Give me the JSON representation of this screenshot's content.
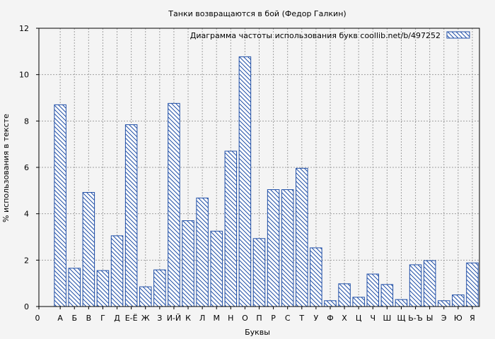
{
  "chart_data": {
    "type": "bar",
    "title": "Танки возвращаются в бой (Федор Галкин)",
    "xlabel": "Буквы",
    "ylabel": "% использования в тексте",
    "ylim": [
      0,
      12
    ],
    "yticks": [
      "0",
      "2",
      "4",
      "6",
      "8",
      "10",
      "12"
    ],
    "grid": true,
    "legend_position": "top-right",
    "categories": [
      "0",
      "А",
      "Б",
      "В",
      "Г",
      "Д",
      "Е-Ё",
      "Ж",
      "З",
      "И-Й",
      "К",
      "Л",
      "М",
      "Н",
      "О",
      "П",
      "Р",
      "С",
      "Т",
      "У",
      "Ф",
      "Х",
      "Ц",
      "Ч",
      "Ш",
      "Щ",
      "Ь-Ъ",
      "Ы",
      "Э",
      "Ю",
      "Я"
    ],
    "series": [
      {
        "name": "Диаграмма частоты использования букв  coollib.net/b/497252",
        "values": [
          null,
          8.7,
          1.65,
          4.92,
          1.55,
          3.05,
          7.84,
          0.85,
          1.58,
          8.76,
          3.7,
          4.68,
          3.25,
          6.7,
          10.77,
          2.93,
          5.04,
          5.04,
          5.96,
          2.53,
          0.25,
          0.98,
          0.4,
          1.4,
          0.95,
          0.3,
          1.8,
          1.98,
          0.25,
          0.5,
          1.88
        ]
      }
    ],
    "colors": {
      "bar_stroke": "#1f4ea6",
      "hatch": "#1f4ea6",
      "bar_fill": "#ffffff",
      "grid": "#a0a0a0",
      "background": "#f4f4f4"
    }
  }
}
